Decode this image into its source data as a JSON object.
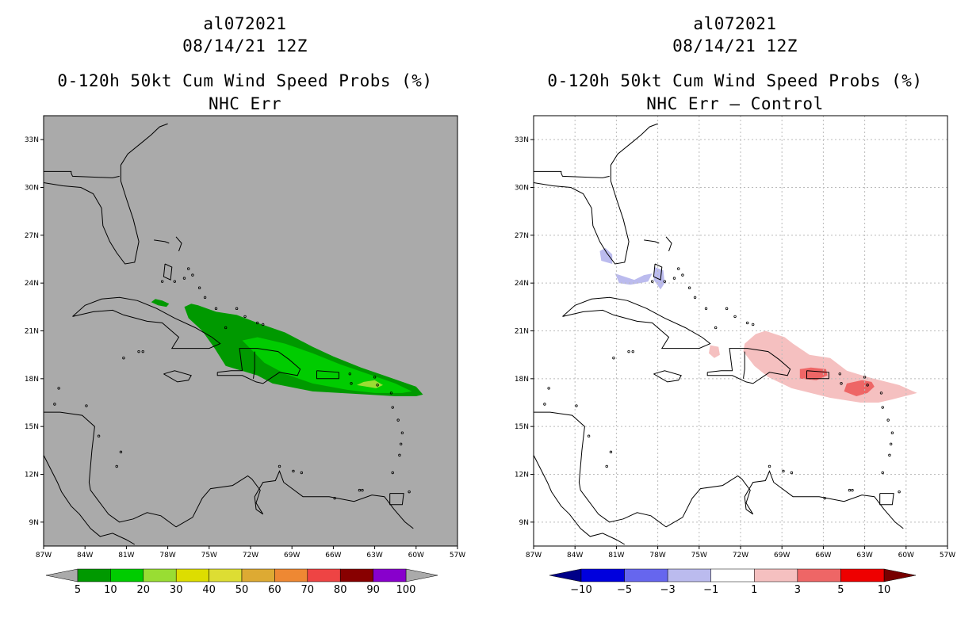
{
  "panels": [
    {
      "title_storm": "al072021",
      "title_date": "08/14/21 12Z",
      "title_product": "0-120h 50kt Cum Wind Speed Probs (%)",
      "title_sub": "NHC Err",
      "background": "#aaaaaa",
      "gridlines": false,
      "colorbar": {
        "labels": [
          "5",
          "10",
          "20",
          "30",
          "40",
          "50",
          "60",
          "70",
          "80",
          "90",
          "100"
        ],
        "colors": [
          "#009900",
          "#00cc00",
          "#99dd33",
          "#dddd00",
          "#dddd33",
          "#ddaa33",
          "#ee8833",
          "#ee4444",
          "#880000",
          "#8800cc"
        ],
        "under_color": "#aaaaaa",
        "over_color": "#aaaaaa"
      }
    },
    {
      "title_storm": "al072021",
      "title_date": "08/14/21 12Z",
      "title_product": "0-120h 50kt Cum Wind Speed Probs (%)",
      "title_sub": "NHC Err – Control",
      "background": "#ffffff",
      "gridlines": true,
      "colorbar": {
        "labels": [
          "−10",
          "−5",
          "−3",
          "−1",
          "1",
          "3",
          "5",
          "10"
        ],
        "colors": [
          "#0000dd",
          "#6666ee",
          "#bbbbee",
          "#ffffff",
          "#f5c0c0",
          "#ee6666",
          "#ee0000"
        ],
        "under_color": "#000088",
        "over_color": "#770000"
      }
    }
  ],
  "axes": {
    "x_ticks": [
      "87W",
      "84W",
      "81W",
      "78W",
      "75W",
      "72W",
      "69W",
      "66W",
      "63W",
      "60W",
      "57W"
    ],
    "y_ticks": [
      "33N",
      "30N",
      "27N",
      "24N",
      "21N",
      "18N",
      "15N",
      "12N",
      "9N"
    ],
    "lon_range": [
      -87,
      -57
    ],
    "lat_range": [
      7.5,
      34.5
    ]
  }
}
